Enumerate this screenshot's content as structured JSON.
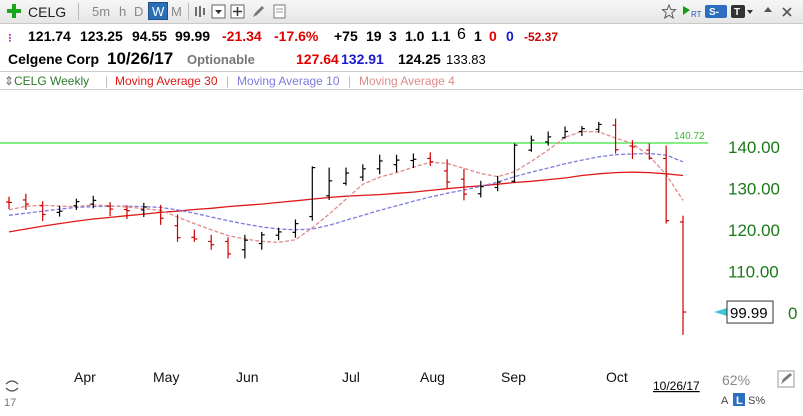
{
  "toolbar": {
    "symbol": "CELG",
    "periods": [
      "5m",
      "h",
      "D",
      "W",
      "M"
    ],
    "active_period": "W",
    "right_labels": {
      "rt": "RT",
      "s": "S-",
      "t": "T"
    }
  },
  "quote": {
    "open": "121.74",
    "high": "123.25",
    "low": "94.55",
    "close": "99.99",
    "change": "-21.34",
    "change_pct": "-17.6%",
    "rating": "+75",
    "v1": "19",
    "v2": "3",
    "v3": "1.0",
    "v4": "1.1",
    "v5": "6",
    "v6": "1",
    "v7": "0",
    "v8": "0",
    "ds": "-52.37"
  },
  "company": {
    "name": "Celgene Corp",
    "date": "10/26/17",
    "optionable": "Optionable",
    "p1": "127.64",
    "p2": "132.91",
    "p3": "124.25",
    "p4": "133.83"
  },
  "legend": {
    "series": "CELG Weekly",
    "ma30": "Moving Average 30",
    "ma10": "Moving Average 10",
    "ma4": "Moving Average 4"
  },
  "colors": {
    "ma30": "#e01818",
    "ma10": "#7c7ce0",
    "ma4": "#e08a8a",
    "line": "#39e339",
    "up": "#000000",
    "down": "#cc0000",
    "axis": "#1a7a1a"
  },
  "chart_data": {
    "type": "ohlc",
    "y_ticks": [
      "140.00",
      "130.00",
      "120.00",
      "110.00"
    ],
    "y_tick_values": [
      140,
      130,
      120,
      110
    ],
    "x_labels": [
      "Apr",
      "May",
      "Jun",
      "Jul",
      "Aug",
      "Sep",
      "Oct"
    ],
    "horizontal_line": {
      "value": 140.72,
      "label": "140.72"
    },
    "last_price_label": "99.99",
    "partial_tick_label": "0",
    "date_label": "10/26/17",
    "zoom_label": "62%",
    "bottom_labels": {
      "a": "A",
      "l": "L",
      "s": "S%"
    },
    "bars": [
      {
        "o": 126.5,
        "h": 127.8,
        "l": 124.8,
        "c": 126.4
      },
      {
        "o": 127.0,
        "h": 128.5,
        "l": 124.6,
        "c": 126.0
      },
      {
        "o": 125.6,
        "h": 126.7,
        "l": 121.9,
        "c": 123.5
      },
      {
        "o": 124.0,
        "h": 125.6,
        "l": 123.0,
        "c": 124.3
      },
      {
        "o": 125.6,
        "h": 127.3,
        "l": 124.6,
        "c": 126.6
      },
      {
        "o": 126.0,
        "h": 128.0,
        "l": 125.0,
        "c": 126.9
      },
      {
        "o": 125.5,
        "h": 126.5,
        "l": 123.1,
        "c": 124.8
      },
      {
        "o": 124.7,
        "h": 125.7,
        "l": 122.4,
        "c": 124.4
      },
      {
        "o": 124.6,
        "h": 126.3,
        "l": 122.9,
        "c": 125.3
      },
      {
        "o": 124.0,
        "h": 125.8,
        "l": 121.0,
        "c": 122.6
      },
      {
        "o": 120.8,
        "h": 123.5,
        "l": 116.9,
        "c": 117.9
      },
      {
        "o": 118.0,
        "h": 119.9,
        "l": 116.9,
        "c": 117.6
      },
      {
        "o": 117.0,
        "h": 118.6,
        "l": 115.0,
        "c": 116.2
      },
      {
        "o": 117.0,
        "h": 118.0,
        "l": 112.9,
        "c": 114.0
      },
      {
        "o": 115.0,
        "h": 118.6,
        "l": 112.9,
        "c": 117.3
      },
      {
        "o": 116.5,
        "h": 119.3,
        "l": 115.0,
        "c": 118.6
      },
      {
        "o": 118.5,
        "h": 120.3,
        "l": 117.3,
        "c": 119.3
      },
      {
        "o": 119.2,
        "h": 122.3,
        "l": 117.9,
        "c": 121.3
      },
      {
        "o": 123.0,
        "h": 135.1,
        "l": 122.0,
        "c": 134.8
      },
      {
        "o": 128.0,
        "h": 134.8,
        "l": 127.0,
        "c": 131.6
      },
      {
        "o": 131.0,
        "h": 134.8,
        "l": 130.5,
        "c": 133.5
      },
      {
        "o": 132.5,
        "h": 135.6,
        "l": 131.6,
        "c": 134.5
      },
      {
        "o": 134.5,
        "h": 137.9,
        "l": 133.2,
        "c": 136.4
      },
      {
        "o": 135.5,
        "h": 137.9,
        "l": 133.7,
        "c": 136.6
      },
      {
        "o": 136.5,
        "h": 138.2,
        "l": 134.7,
        "c": 136.8
      },
      {
        "o": 137.0,
        "h": 138.5,
        "l": 135.2,
        "c": 136.2
      },
      {
        "o": 134.0,
        "h": 136.8,
        "l": 129.9,
        "c": 131.3
      },
      {
        "o": 132.0,
        "h": 134.5,
        "l": 126.9,
        "c": 128.4
      },
      {
        "o": 128.5,
        "h": 131.6,
        "l": 127.6,
        "c": 130.2
      },
      {
        "o": 130.0,
        "h": 132.8,
        "l": 129.1,
        "c": 131.3
      },
      {
        "o": 131.5,
        "h": 140.6,
        "l": 131.1,
        "c": 140.2
      },
      {
        "o": 139.0,
        "h": 142.5,
        "l": 138.6,
        "c": 141.4
      },
      {
        "o": 141.0,
        "h": 143.5,
        "l": 140.1,
        "c": 142.2
      },
      {
        "o": 142.0,
        "h": 144.7,
        "l": 141.8,
        "c": 143.5
      },
      {
        "o": 143.5,
        "h": 144.8,
        "l": 142.4,
        "c": 144.2
      },
      {
        "o": 144.0,
        "h": 145.8,
        "l": 143.2,
        "c": 145.2
      },
      {
        "o": 145.0,
        "h": 146.6,
        "l": 138.2,
        "c": 139.1
      },
      {
        "o": 140.0,
        "h": 141.4,
        "l": 136.9,
        "c": 139.8
      },
      {
        "o": 139.0,
        "h": 140.6,
        "l": 136.7,
        "c": 137.0
      },
      {
        "o": 137.0,
        "h": 140.1,
        "l": 121.3,
        "c": 122.0
      },
      {
        "o": 121.7,
        "h": 123.2,
        "l": 94.5,
        "c": 99.99
      }
    ],
    "ma30": [
      119.3,
      120.0,
      120.7,
      121.3,
      121.9,
      122.4,
      122.8,
      123.2,
      123.6,
      124.0,
      124.3,
      124.7,
      125.0,
      125.4,
      125.7,
      126.0,
      126.4,
      126.8,
      127.2,
      127.6,
      127.9,
      128.1,
      128.3,
      128.6,
      128.9,
      129.3,
      129.7,
      130.1,
      130.4,
      130.8,
      131.2,
      131.5,
      131.9,
      132.3,
      132.9,
      133.3,
      133.6,
      133.7,
      133.6,
      133.3,
      132.9
    ],
    "ma10": [
      123.3,
      123.8,
      124.3,
      124.8,
      125.2,
      125.4,
      125.5,
      125.5,
      125.4,
      125.2,
      124.6,
      123.8,
      122.9,
      122.0,
      121.2,
      120.5,
      120.0,
      119.8,
      120.0,
      120.9,
      122.1,
      123.3,
      124.5,
      125.6,
      126.7,
      127.7,
      128.6,
      129.4,
      130.3,
      131.3,
      132.6,
      133.7,
      134.7,
      135.7,
      136.6,
      137.4,
      137.9,
      138.1,
      138.2,
      137.8,
      136.2
    ],
    "ma4": [
      124.6,
      125.5,
      125.7,
      125.5,
      125.4,
      125.8,
      125.6,
      125.3,
      124.9,
      124.5,
      122.9,
      121.3,
      119.8,
      118.4,
      117.6,
      117.0,
      116.8,
      117.4,
      120.3,
      123.6,
      127.2,
      130.8,
      132.5,
      133.6,
      134.9,
      136.1,
      135.8,
      134.6,
      133.4,
      132.6,
      133.8,
      136.3,
      139.0,
      142.1,
      143.5,
      143.4,
      141.9,
      140.6,
      137.6,
      133.1,
      126.9
    ]
  }
}
